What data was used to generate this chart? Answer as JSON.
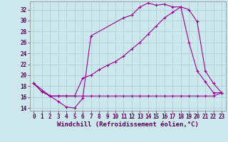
{
  "xlabel": "Windchill (Refroidissement éolien,°C)",
  "bg_color": "#cce8ec",
  "grid_color": "#aacccc",
  "line_color": "#990099",
  "xlim": [
    -0.5,
    23.5
  ],
  "ylim": [
    13.5,
    33.5
  ],
  "xticks": [
    0,
    1,
    2,
    3,
    4,
    5,
    6,
    7,
    8,
    9,
    10,
    11,
    12,
    13,
    14,
    15,
    16,
    17,
    18,
    19,
    20,
    21,
    22,
    23
  ],
  "yticks": [
    14,
    16,
    18,
    20,
    22,
    24,
    26,
    28,
    30,
    32
  ],
  "curve1_x": [
    0,
    1,
    2,
    3,
    4,
    5,
    6,
    7,
    11,
    12,
    13,
    14,
    15,
    16,
    17,
    18,
    19,
    20,
    21,
    22,
    23
  ],
  "curve1_y": [
    18.5,
    17.0,
    16.2,
    15.2,
    14.2,
    14.0,
    15.8,
    27.2,
    30.5,
    31.0,
    32.5,
    33.2,
    32.8,
    33.0,
    32.5,
    32.5,
    32.0,
    29.8,
    20.8,
    18.5,
    16.8
  ],
  "curve2_x": [
    0,
    2,
    3,
    4,
    5,
    6,
    7,
    8,
    9,
    10,
    11,
    12,
    13,
    14,
    15,
    16,
    17,
    18,
    19,
    20,
    21,
    22,
    23
  ],
  "curve2_y": [
    18.5,
    16.2,
    16.2,
    16.2,
    16.2,
    16.2,
    16.2,
    16.2,
    16.2,
    16.2,
    16.2,
    16.2,
    16.2,
    16.2,
    16.2,
    16.2,
    16.2,
    16.2,
    16.2,
    16.2,
    16.2,
    16.2,
    16.8
  ],
  "curve3_x": [
    0,
    1,
    2,
    3,
    4,
    5,
    6,
    7,
    8,
    9,
    10,
    11,
    12,
    13,
    14,
    15,
    16,
    17,
    18,
    19,
    20,
    21,
    22,
    23
  ],
  "curve3_y": [
    18.5,
    17.0,
    16.2,
    16.2,
    16.2,
    16.2,
    19.5,
    20.0,
    21.0,
    21.8,
    22.5,
    23.5,
    24.8,
    26.0,
    27.5,
    29.0,
    30.5,
    31.5,
    32.5,
    26.0,
    20.8,
    18.8,
    16.8,
    16.8
  ],
  "fontsize_label": 6.5,
  "fontsize_tick": 5.5
}
